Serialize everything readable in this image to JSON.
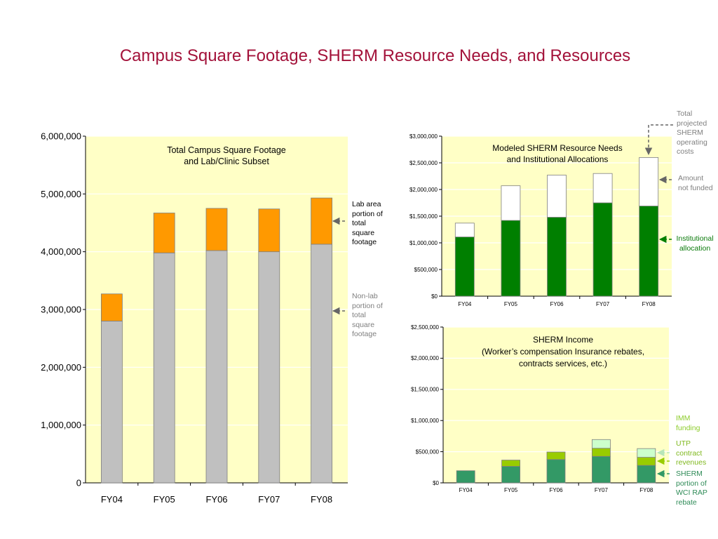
{
  "page": {
    "title": "Campus Square Footage, SHERM Resource Needs, and Resources"
  },
  "colors": {
    "title": "#a3123a",
    "plot_bg": "#ffffc6",
    "gray_bar": "#c0c0c0",
    "orange_bar": "#ff9900",
    "green_bar": "#007f00",
    "white_bar": "#ffffff",
    "sherm_wci": "#339966",
    "utp": "#99cc00",
    "imm": "#ccffcc"
  },
  "annotations": {
    "lab_area": "Lab area portion of total square footage",
    "non_lab": "Non-lab portion of total square footage",
    "total_projected": "Total projected SHERM operating costs",
    "amount_not_funded": "Amount not funded",
    "institutional_allocation": "Institutional allocation",
    "imm_funding": "IMM funding",
    "utp_contract": "UTP contract revenues",
    "sherm_wci": "SHERM portion of WCI RAP rebate"
  },
  "chart_data": [
    {
      "id": "square-footage",
      "type": "bar",
      "stacked": true,
      "title": "Total Campus Square Footage\nand Lab/Clinic Subset",
      "categories": [
        "FY04",
        "FY05",
        "FY06",
        "FY07",
        "FY08"
      ],
      "series": [
        {
          "values": [
            2800000,
            3980000,
            4020000,
            4000000,
            4130000
          ],
          "color": "#c0c0c0"
        },
        {
          "values": [
            470000,
            690000,
            730000,
            740000,
            800000
          ],
          "color": "#ff9900"
        }
      ],
      "ylim": [
        0,
        6000000
      ],
      "yticks": [
        0,
        1000000,
        2000000,
        3000000,
        4000000,
        5000000,
        6000000
      ],
      "ytick_labels": [
        "0",
        "1,000,000",
        "2,000,000",
        "3,000,000",
        "4,000,000",
        "5,000,000",
        "6,000,000"
      ],
      "grid": true
    },
    {
      "id": "resource-needs",
      "type": "bar",
      "stacked": true,
      "title": "Modeled SHERM Resource Needs\nand Institutional Allocations",
      "categories": [
        "FY04",
        "FY05",
        "FY06",
        "FY07",
        "FY08"
      ],
      "series": [
        {
          "values": [
            1110000,
            1420000,
            1480000,
            1750000,
            1690000
          ],
          "color": "#007f00"
        },
        {
          "values": [
            260000,
            650000,
            790000,
            550000,
            910000
          ],
          "color": "#ffffff"
        }
      ],
      "ylim": [
        0,
        3000000
      ],
      "yticks": [
        0,
        500000,
        1000000,
        1500000,
        2000000,
        2500000,
        3000000
      ],
      "ytick_labels": [
        "$0",
        "$500,000",
        "$1,000,000",
        "$1,500,000",
        "$2,000,000",
        "$2,500,000",
        "$3,000,000"
      ],
      "grid": true
    },
    {
      "id": "sherm-income",
      "type": "bar",
      "stacked": true,
      "title": "SHERM Income\n(Worker’s compensation Insurance rebates,\ncontracts services, etc.)",
      "categories": [
        "FY04",
        "FY05",
        "FY06",
        "FY07",
        "FY08"
      ],
      "series": [
        {
          "values": [
            195000,
            265000,
            375000,
            425000,
            280000
          ],
          "color": "#339966"
        },
        {
          "values": [
            0,
            100000,
            120000,
            130000,
            130000
          ],
          "color": "#99cc00"
        },
        {
          "values": [
            0,
            0,
            0,
            140000,
            140000
          ],
          "color": "#ccffcc"
        }
      ],
      "ylim": [
        0,
        2500000
      ],
      "yticks": [
        0,
        500000,
        1000000,
        1500000,
        2000000,
        2500000
      ],
      "ytick_labels": [
        "$0",
        "$500,000",
        "$1,000,000",
        "$1,500,000",
        "$2,000,000",
        "$2,500,000"
      ],
      "grid": true
    }
  ]
}
